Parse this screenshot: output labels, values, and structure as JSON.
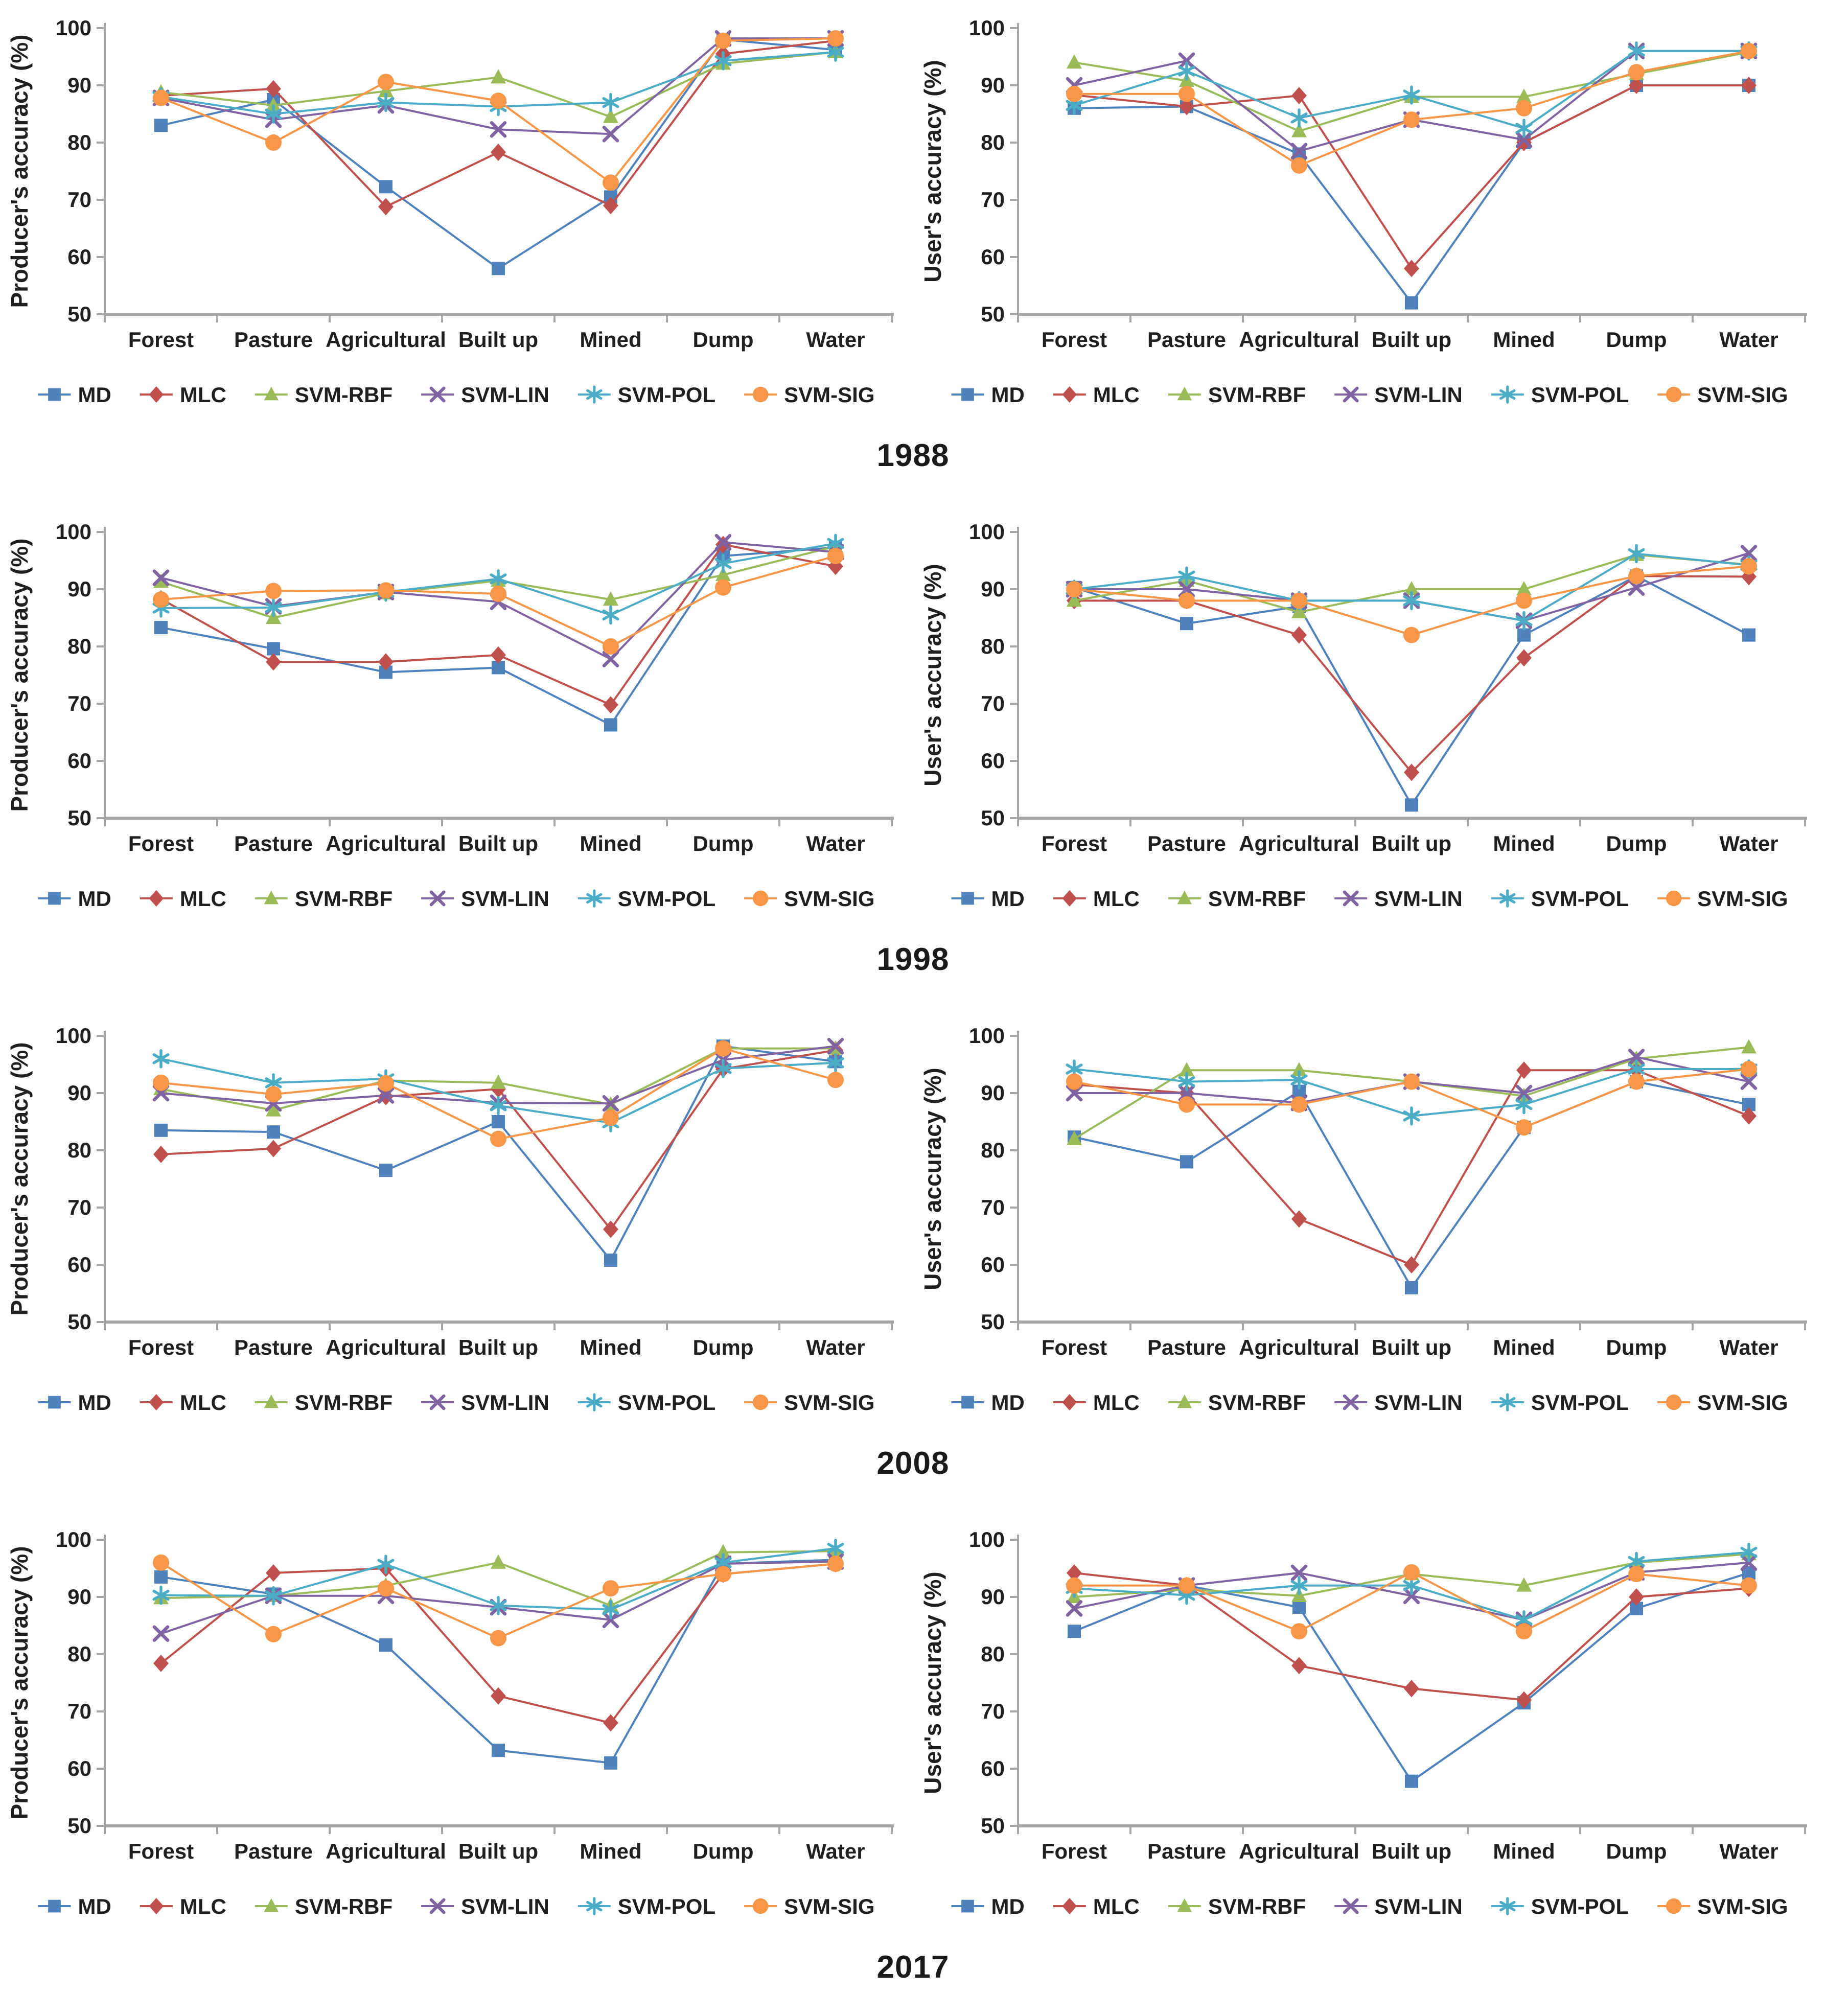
{
  "years": [
    "1988",
    "1998",
    "2008",
    "2017"
  ],
  "axis": {
    "line_color": "#a6a6a6",
    "text_color": "#1f1f1f"
  },
  "chart_data": [
    {
      "type": "line",
      "group_year": "1988",
      "panel": "producer",
      "ylabel": "Producer's accuracy (%)",
      "ylim": [
        50,
        100
      ],
      "yticks": [
        50,
        60,
        70,
        80,
        90,
        100
      ],
      "grid": false,
      "legend_position": "bottom",
      "categories": [
        "Forest",
        "Pasture",
        "Agricultural",
        "Built up",
        "Mined",
        "Dump",
        "Water"
      ],
      "series": [
        {
          "name": "MD",
          "color": "#4F81BD",
          "marker": "square",
          "values": [
            83,
            87.5,
            72.3,
            58,
            70.5,
            98,
            96.2
          ]
        },
        {
          "name": "MLC",
          "color": "#C0504D",
          "marker": "diamond",
          "values": [
            88.2,
            89.4,
            68.8,
            78.3,
            69,
            95.5,
            97.8
          ]
        },
        {
          "name": "SVM-RBF",
          "color": "#9BBB59",
          "marker": "triangle",
          "values": [
            88.8,
            86.5,
            89,
            91.4,
            84.5,
            93.8,
            95.8
          ]
        },
        {
          "name": "SVM-LIN",
          "color": "#8064A2",
          "marker": "x",
          "values": [
            87.8,
            84,
            86.5,
            82.3,
            81.5,
            98.2,
            98.2
          ]
        },
        {
          "name": "SVM-POL",
          "color": "#4BACC6",
          "marker": "asterisk",
          "values": [
            88,
            85,
            87,
            86.3,
            87,
            94.3,
            95.8
          ]
        },
        {
          "name": "SVM-SIG",
          "color": "#F79646",
          "marker": "circle",
          "values": [
            87.8,
            80,
            90.6,
            87.3,
            73,
            97.8,
            98.2
          ]
        }
      ]
    },
    {
      "type": "line",
      "group_year": "1988",
      "panel": "user",
      "ylabel": "User's accuracy (%)",
      "ylim": [
        50,
        100
      ],
      "yticks": [
        50,
        60,
        70,
        80,
        90,
        100
      ],
      "grid": false,
      "legend_position": "bottom",
      "categories": [
        "Forest",
        "Pasture",
        "Agricultural",
        "Built up",
        "Mined",
        "Dump",
        "Water"
      ],
      "series": [
        {
          "name": "MD",
          "color": "#4F81BD",
          "marker": "square",
          "values": [
            86,
            86.3,
            78,
            52,
            80,
            90,
            90
          ]
        },
        {
          "name": "MLC",
          "color": "#C0504D",
          "marker": "diamond",
          "values": [
            88.3,
            86.3,
            88.2,
            58,
            80,
            90,
            90
          ]
        },
        {
          "name": "SVM-RBF",
          "color": "#9BBB59",
          "marker": "triangle",
          "values": [
            94,
            90.8,
            82,
            88,
            88,
            92,
            95.8
          ]
        },
        {
          "name": "SVM-LIN",
          "color": "#8064A2",
          "marker": "x",
          "values": [
            90,
            94.3,
            78.5,
            84,
            80.5,
            96,
            96
          ]
        },
        {
          "name": "SVM-POL",
          "color": "#4BACC6",
          "marker": "asterisk",
          "values": [
            86.5,
            92.5,
            84.3,
            88.3,
            82.5,
            96,
            96
          ]
        },
        {
          "name": "SVM-SIG",
          "color": "#F79646",
          "marker": "circle",
          "values": [
            88.5,
            88.5,
            76,
            84,
            86,
            92.3,
            96
          ]
        }
      ]
    },
    {
      "type": "line",
      "group_year": "1998",
      "panel": "producer",
      "ylabel": "Producer's accuracy (%)",
      "ylim": [
        50,
        100
      ],
      "yticks": [
        50,
        60,
        70,
        80,
        90,
        100
      ],
      "grid": false,
      "legend_position": "bottom",
      "categories": [
        "Forest",
        "Pasture",
        "Agricultural",
        "Built up",
        "Mined",
        "Dump",
        "Water"
      ],
      "series": [
        {
          "name": "MD",
          "color": "#4F81BD",
          "marker": "square",
          "values": [
            83.3,
            79.6,
            75.5,
            76.3,
            66.3,
            95.8,
            97.3
          ]
        },
        {
          "name": "MLC",
          "color": "#C0504D",
          "marker": "diamond",
          "values": [
            88.3,
            77.3,
            77.3,
            78.5,
            69.8,
            97.8,
            94
          ]
        },
        {
          "name": "SVM-RBF",
          "color": "#9BBB59",
          "marker": "triangle",
          "values": [
            91.3,
            85,
            89.3,
            91.5,
            88.2,
            92.5,
            97.5
          ]
        },
        {
          "name": "SVM-LIN",
          "color": "#8064A2",
          "marker": "x",
          "values": [
            92,
            87,
            89.5,
            87.8,
            77.8,
            98.2,
            96.5
          ]
        },
        {
          "name": "SVM-POL",
          "color": "#4BACC6",
          "marker": "asterisk",
          "values": [
            86.7,
            86.8,
            89.5,
            91.8,
            85.5,
            94.5,
            98
          ]
        },
        {
          "name": "SVM-SIG",
          "color": "#F79646",
          "marker": "circle",
          "values": [
            88.2,
            89.7,
            89.8,
            89.2,
            80,
            90.3,
            95.8
          ]
        }
      ]
    },
    {
      "type": "line",
      "group_year": "1998",
      "panel": "user",
      "ylabel": "User's accuracy (%)",
      "ylim": [
        50,
        100
      ],
      "yticks": [
        50,
        60,
        70,
        80,
        90,
        100
      ],
      "grid": false,
      "legend_position": "bottom",
      "categories": [
        "Forest",
        "Pasture",
        "Agricultural",
        "Built up",
        "Mined",
        "Dump",
        "Water"
      ],
      "series": [
        {
          "name": "MD",
          "color": "#4F81BD",
          "marker": "square",
          "values": [
            90.3,
            84,
            87,
            52.3,
            82,
            92.3,
            82
          ]
        },
        {
          "name": "MLC",
          "color": "#C0504D",
          "marker": "diamond",
          "values": [
            88,
            88,
            82,
            58,
            78,
            92.3,
            92.2
          ]
        },
        {
          "name": "SVM-RBF",
          "color": "#9BBB59",
          "marker": "triangle",
          "values": [
            88,
            91.5,
            86,
            90,
            90,
            96,
            94.3
          ]
        },
        {
          "name": "SVM-LIN",
          "color": "#8064A2",
          "marker": "x",
          "values": [
            90,
            90,
            88,
            88,
            84.5,
            90.3,
            96.3
          ]
        },
        {
          "name": "SVM-POL",
          "color": "#4BACC6",
          "marker": "asterisk",
          "values": [
            90,
            92.3,
            88,
            88,
            84.5,
            96.2,
            94.2
          ]
        },
        {
          "name": "SVM-SIG",
          "color": "#F79646",
          "marker": "circle",
          "values": [
            90,
            88,
            88,
            82,
            88,
            92.3,
            94
          ]
        }
      ]
    },
    {
      "type": "line",
      "group_year": "2008",
      "panel": "producer",
      "ylabel": "Producer's accuracy (%)",
      "ylim": [
        50,
        100
      ],
      "yticks": [
        50,
        60,
        70,
        80,
        90,
        100
      ],
      "grid": false,
      "legend_position": "bottom",
      "categories": [
        "Forest",
        "Pasture",
        "Agricultural",
        "Built up",
        "Mined",
        "Dump",
        "Water"
      ],
      "series": [
        {
          "name": "MD",
          "color": "#4F81BD",
          "marker": "square",
          "values": [
            83.5,
            83.2,
            76.5,
            85,
            60.8,
            98.2,
            95.5
          ]
        },
        {
          "name": "MLC",
          "color": "#C0504D",
          "marker": "diamond",
          "values": [
            79.3,
            80.3,
            89.4,
            90.7,
            66.2,
            94.2,
            97.5
          ]
        },
        {
          "name": "SVM-RBF",
          "color": "#9BBB59",
          "marker": "triangle",
          "values": [
            90.7,
            87,
            92.2,
            91.8,
            88,
            97.8,
            97.8
          ]
        },
        {
          "name": "SVM-LIN",
          "color": "#8064A2",
          "marker": "x",
          "values": [
            90,
            88.2,
            89.6,
            88.3,
            88.2,
            95.8,
            98.2
          ]
        },
        {
          "name": "SVM-POL",
          "color": "#4BACC6",
          "marker": "asterisk",
          "values": [
            96,
            91.8,
            92.5,
            87.8,
            84.8,
            94.3,
            95.3
          ]
        },
        {
          "name": "SVM-SIG",
          "color": "#F79646",
          "marker": "circle",
          "values": [
            91.8,
            89.8,
            91.7,
            82,
            85.7,
            97.8,
            92.3
          ]
        }
      ]
    },
    {
      "type": "line",
      "group_year": "2008",
      "panel": "user",
      "ylabel": "User's accuracy (%)",
      "ylim": [
        50,
        100
      ],
      "yticks": [
        50,
        60,
        70,
        80,
        90,
        100
      ],
      "grid": false,
      "legend_position": "bottom",
      "categories": [
        "Forest",
        "Pasture",
        "Agricultural",
        "Built up",
        "Mined",
        "Dump",
        "Water"
      ],
      "series": [
        {
          "name": "MD",
          "color": "#4F81BD",
          "marker": "square",
          "values": [
            82.3,
            78,
            90.3,
            56,
            84,
            92,
            88
          ]
        },
        {
          "name": "MLC",
          "color": "#C0504D",
          "marker": "diamond",
          "values": [
            91.5,
            90,
            68,
            60,
            94,
            94,
            86
          ]
        },
        {
          "name": "SVM-RBF",
          "color": "#9BBB59",
          "marker": "triangle",
          "values": [
            82,
            94,
            94,
            92,
            89.5,
            96,
            98
          ]
        },
        {
          "name": "SVM-LIN",
          "color": "#8064A2",
          "marker": "x",
          "values": [
            90,
            90,
            88.3,
            92,
            90,
            96.3,
            92
          ]
        },
        {
          "name": "SVM-POL",
          "color": "#4BACC6",
          "marker": "asterisk",
          "values": [
            94.2,
            92,
            92.3,
            86,
            88,
            94.2,
            94.2
          ]
        },
        {
          "name": "SVM-SIG",
          "color": "#F79646",
          "marker": "circle",
          "values": [
            92,
            88,
            88,
            92,
            84,
            92,
            94.2
          ]
        }
      ]
    },
    {
      "type": "line",
      "group_year": "2017",
      "panel": "producer",
      "ylabel": "Producer's accuracy (%)",
      "ylim": [
        50,
        100
      ],
      "yticks": [
        50,
        60,
        70,
        80,
        90,
        100
      ],
      "grid": false,
      "legend_position": "bottom",
      "categories": [
        "Forest",
        "Pasture",
        "Agricultural",
        "Built up",
        "Mined",
        "Dump",
        "Water"
      ],
      "series": [
        {
          "name": "MD",
          "color": "#4F81BD",
          "marker": "square",
          "values": [
            93.5,
            90.5,
            81.6,
            63.2,
            61,
            95.8,
            96.5
          ]
        },
        {
          "name": "MLC",
          "color": "#C0504D",
          "marker": "diamond",
          "values": [
            78.4,
            94.2,
            95,
            72.7,
            68,
            94,
            95.8
          ]
        },
        {
          "name": "SVM-RBF",
          "color": "#9BBB59",
          "marker": "triangle",
          "values": [
            89.8,
            90.2,
            92,
            96,
            88.5,
            97.8,
            98
          ]
        },
        {
          "name": "SVM-LIN",
          "color": "#8064A2",
          "marker": "x",
          "values": [
            83.6,
            90.2,
            90.2,
            88.2,
            86,
            95.8,
            96.2
          ]
        },
        {
          "name": "SVM-POL",
          "color": "#4BACC6",
          "marker": "asterisk",
          "values": [
            90.3,
            90.2,
            95.7,
            88.5,
            87.8,
            96,
            98.5
          ]
        },
        {
          "name": "SVM-SIG",
          "color": "#F79646",
          "marker": "circle",
          "values": [
            96,
            83.5,
            91.5,
            82.8,
            91.5,
            94,
            95.8
          ]
        }
      ]
    },
    {
      "type": "line",
      "group_year": "2017",
      "panel": "user",
      "ylabel": "User's accuracy (%)",
      "ylim": [
        50,
        100
      ],
      "yticks": [
        50,
        60,
        70,
        80,
        90,
        100
      ],
      "grid": false,
      "legend_position": "bottom",
      "categories": [
        "Forest",
        "Pasture",
        "Agricultural",
        "Built up",
        "Mined",
        "Dump",
        "Water"
      ],
      "series": [
        {
          "name": "MD",
          "color": "#4F81BD",
          "marker": "square",
          "values": [
            84,
            92,
            88.2,
            57.8,
            71.5,
            88,
            94.2
          ]
        },
        {
          "name": "MLC",
          "color": "#C0504D",
          "marker": "diamond",
          "values": [
            94.2,
            92,
            78,
            74,
            72,
            90,
            91.5
          ]
        },
        {
          "name": "SVM-RBF",
          "color": "#9BBB59",
          "marker": "triangle",
          "values": [
            90,
            91.3,
            90.2,
            94,
            92,
            96,
            97.5
          ]
        },
        {
          "name": "SVM-LIN",
          "color": "#8064A2",
          "marker": "x",
          "values": [
            88,
            92,
            94.2,
            90.2,
            86,
            94.3,
            96
          ]
        },
        {
          "name": "SVM-POL",
          "color": "#4BACC6",
          "marker": "asterisk",
          "values": [
            91.5,
            90.3,
            92,
            92,
            86,
            96.2,
            97.8
          ]
        },
        {
          "name": "SVM-SIG",
          "color": "#F79646",
          "marker": "circle",
          "values": [
            92,
            92,
            84,
            94.3,
            84,
            94,
            92
          ]
        }
      ]
    }
  ]
}
